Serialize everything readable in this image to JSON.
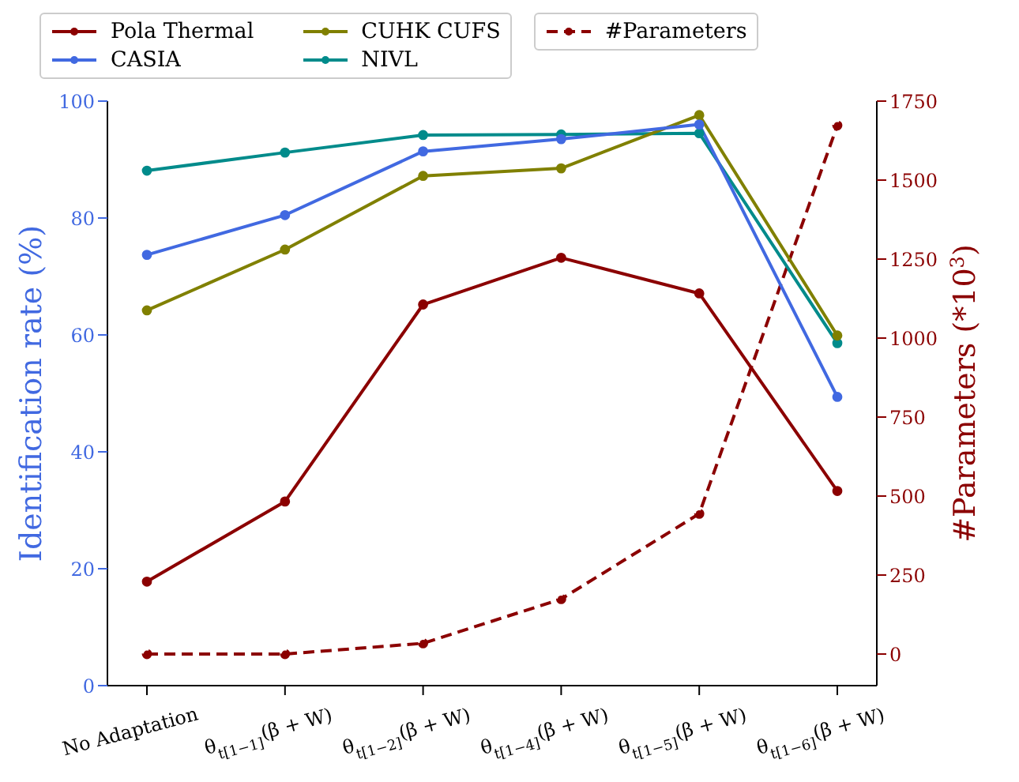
{
  "chart_data": {
    "type": "line",
    "ylabel": "Identification rate (%)",
    "y2label": "#Parameters (*10$^{3}$)",
    "categories": [
      "No Adaptation",
      "θ$_{t[1−1]}$(β + W)",
      "θ$_{t[1−2]}$(β + W)",
      "θ$_{t[1−4]}$(β + W)",
      "θ$_{t[1−5]}$(β + W)",
      "θ$_{t[1−6]}$(β + W)"
    ],
    "series": [
      {
        "name": "Pola Thermal",
        "color": "#8b0000",
        "values": [
          17.8,
          31.5,
          65.2,
          73.2,
          67.1,
          33.3
        ]
      },
      {
        "name": "CASIA",
        "color": "#4169e1",
        "values": [
          73.7,
          80.5,
          91.4,
          93.5,
          96.0,
          49.4
        ]
      },
      {
        "name": "CUHK CUFS",
        "color": "#808000",
        "values": [
          64.2,
          74.6,
          87.2,
          88.5,
          97.6,
          59.9
        ]
      },
      {
        "name": "NIVL",
        "color": "#008b8b",
        "values": [
          88.1,
          91.2,
          94.2,
          94.3,
          94.5,
          58.6
        ]
      },
      {
        "name": "#Parameters",
        "color": "#8b0000",
        "axis": "y2",
        "line_style": "dashed",
        "values": [
          0,
          0,
          34,
          174,
          444,
          1673
        ]
      }
    ],
    "ylim": [
      0,
      100
    ],
    "yticks": [
      0,
      20,
      40,
      60,
      80,
      100
    ],
    "y2lim": [
      -100,
      1750
    ],
    "y2ticks": [
      0,
      250,
      500,
      750,
      1000,
      1250,
      1500,
      1750
    ],
    "marker": "circle",
    "line_style": "solid",
    "grid": false,
    "legend": "top"
  }
}
